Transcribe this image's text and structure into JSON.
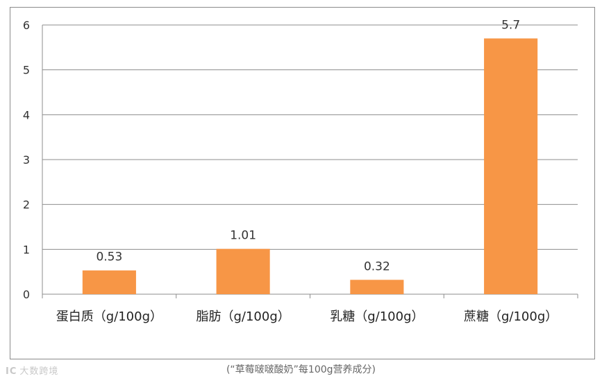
{
  "chart_data": {
    "type": "bar",
    "categories": [
      "蛋白质（g/100g）",
      "脂肪（g/100g）",
      "乳糖（g/100g）",
      "蔗糖（g/100g）"
    ],
    "values": [
      0.53,
      1.01,
      0.32,
      5.7
    ],
    "data_labels": [
      "0.53",
      "1.01",
      "0.32",
      "5.7"
    ],
    "yticks": [
      "0",
      "1",
      "2",
      "3",
      "4",
      "5",
      "6"
    ],
    "ylim": [
      0,
      6
    ],
    "grid": true,
    "bar_color": "#F79646",
    "title": "",
    "xlabel": "",
    "ylabel": ""
  },
  "caption": "(“草莓啵啵酸奶”每100g营养成分)",
  "watermark": "大数跨境"
}
